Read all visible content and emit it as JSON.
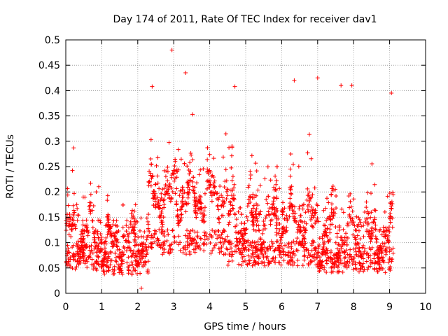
{
  "chart_data": {
    "type": "scatter",
    "title": "Day 174 of 2011, Rate Of TEC Index for receiver dav1",
    "xlabel": "GPS time / hours",
    "ylabel": "ROTI / TECUs",
    "xlim": [
      0,
      10
    ],
    "ylim": [
      0,
      0.5
    ],
    "grid": true,
    "marker": "plus",
    "color": "#ff0000",
    "x_ticks": [
      "0",
      "1",
      "2",
      "3",
      "4",
      "5",
      "6",
      "7",
      "8",
      "9",
      "10"
    ],
    "y_ticks": [
      "0",
      "0.05",
      "0.1",
      "0.15",
      "0.2",
      "0.25",
      "0.3",
      "0.35",
      "0.4",
      "0.45",
      "0.5"
    ],
    "density_profile": {
      "x_range": [
        0.0,
        9.1
      ],
      "segments": [
        {
          "x": [
            0.0,
            1.0
          ],
          "baseline": 0.1,
          "spread": 0.07
        },
        {
          "x": [
            1.0,
            2.3
          ],
          "baseline": 0.08,
          "spread": 0.07
        },
        {
          "x": [
            2.3,
            4.5
          ],
          "baseline": 0.17,
          "spread": 0.09
        },
        {
          "x": [
            4.5,
            7.0
          ],
          "baseline": 0.12,
          "spread": 0.1
        },
        {
          "x": [
            7.0,
            9.1
          ],
          "baseline": 0.09,
          "spread": 0.09
        }
      ],
      "point_count": 2400
    },
    "notable_points": [
      {
        "x": 2.95,
        "y": 0.48
      },
      {
        "x": 3.33,
        "y": 0.435
      },
      {
        "x": 6.35,
        "y": 0.42
      },
      {
        "x": 7.0,
        "y": 0.425
      },
      {
        "x": 2.4,
        "y": 0.408
      },
      {
        "x": 4.7,
        "y": 0.408
      },
      {
        "x": 7.65,
        "y": 0.41
      },
      {
        "x": 7.95,
        "y": 0.41
      },
      {
        "x": 9.05,
        "y": 0.395
      },
      {
        "x": 0.22,
        "y": 0.287
      },
      {
        "x": 2.1,
        "y": 0.01
      }
    ]
  }
}
